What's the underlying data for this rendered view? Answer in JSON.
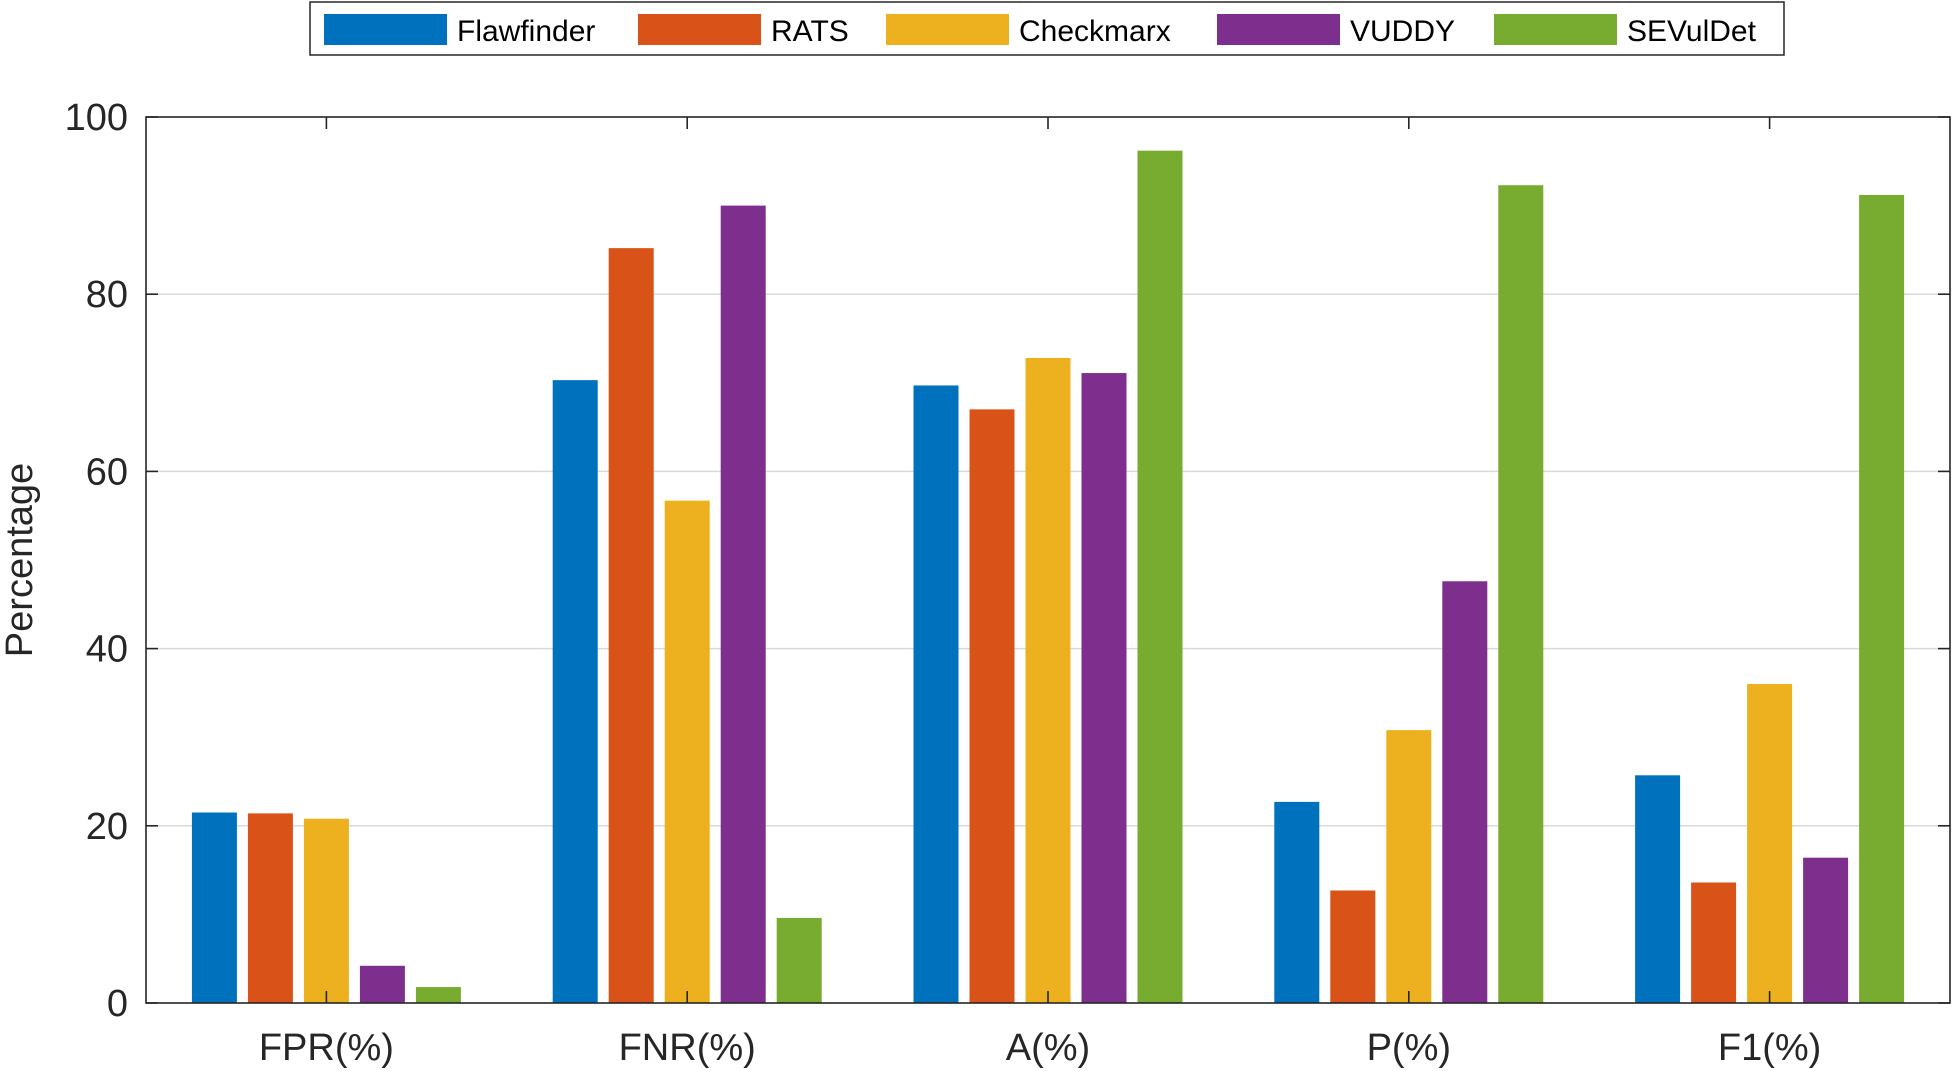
{
  "chart_data": {
    "type": "bar",
    "title": "",
    "xlabel": "",
    "ylabel": "Percentage",
    "ylim": [
      0,
      100
    ],
    "yticks": [
      0,
      20,
      40,
      60,
      80,
      100
    ],
    "grid": true,
    "legend_position": "top",
    "categories": [
      "FPR(%)",
      "FNR(%)",
      "A(%)",
      "P(%)",
      "F1(%)"
    ],
    "series": [
      {
        "name": "Flawfinder",
        "color": "#0072BD",
        "values": [
          21.5,
          70.3,
          69.7,
          22.7,
          25.7
        ]
      },
      {
        "name": "RATS",
        "color": "#D95319",
        "values": [
          21.4,
          85.2,
          67.0,
          12.7,
          13.6
        ]
      },
      {
        "name": "Checkmarx",
        "color": "#EDB120",
        "values": [
          20.8,
          56.7,
          72.8,
          30.8,
          36.0
        ]
      },
      {
        "name": "VUDDY",
        "color": "#7E2F8E",
        "values": [
          4.2,
          90.0,
          71.1,
          47.6,
          16.4
        ]
      },
      {
        "name": "SEVulDet",
        "color": "#77AC30",
        "values": [
          1.8,
          9.6,
          96.2,
          92.3,
          91.2
        ]
      }
    ]
  }
}
